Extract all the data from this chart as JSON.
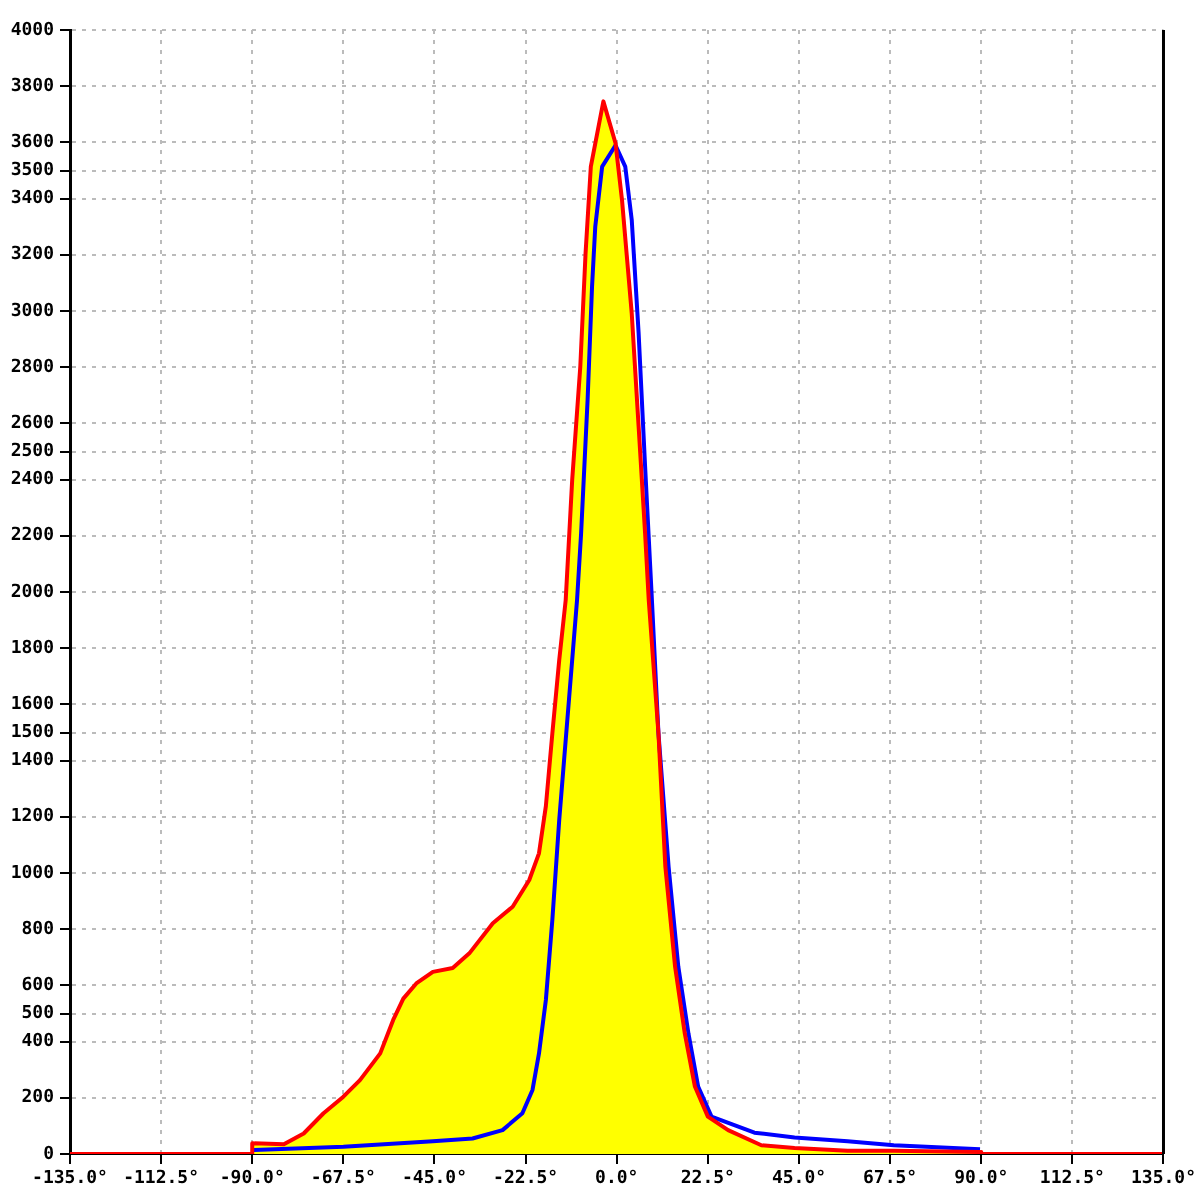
{
  "chart_data": {
    "type": "area",
    "grid": true,
    "marker": "none",
    "legend": false,
    "xlim": [
      -135,
      135
    ],
    "xticks": [
      {
        "value": -135,
        "label": "-135.0°"
      },
      {
        "value": -112.5,
        "label": "-112.5°"
      },
      {
        "value": -90,
        "label": "-90.0°"
      },
      {
        "value": -67.5,
        "label": "-67.5°"
      },
      {
        "value": -45,
        "label": "-45.0°"
      },
      {
        "value": -22.5,
        "label": "-22.5°"
      },
      {
        "value": 0,
        "label": "0.0°"
      },
      {
        "value": 22.5,
        "label": "22.5°"
      },
      {
        "value": 45,
        "label": "45.0°"
      },
      {
        "value": 67.5,
        "label": "67.5°"
      },
      {
        "value": 90,
        "label": "90.0°"
      },
      {
        "value": 112.5,
        "label": "112.5°"
      },
      {
        "value": 135,
        "label": "135.0°"
      }
    ],
    "ylim": [
      0,
      4000
    ],
    "yticks": [
      0,
      200,
      400,
      500,
      600,
      800,
      1000,
      1200,
      1400,
      1500,
      1600,
      1800,
      2000,
      2200,
      2400,
      2500,
      2600,
      2800,
      3000,
      3200,
      3400,
      3500,
      3600,
      3800,
      4000
    ],
    "series": [
      {
        "type": "area",
        "color": "#ffff00",
        "x": [
          -90,
          -90,
          -82.2,
          -77.3,
          -72.4,
          -67.5,
          -63.4,
          -58.4,
          -55.2,
          -52.7,
          -49.5,
          -45.4,
          -40.5,
          -36.4,
          -30.6,
          -25.7,
          -21.6,
          -19.2,
          -17.5,
          -15.9,
          -14.2,
          -12.6,
          -11,
          -9,
          -7.7,
          -6.4,
          -3.3,
          -0.3,
          1.3,
          3.7,
          5.4,
          7,
          7.9,
          10.3,
          12,
          14.4,
          16.8,
          19.3,
          22.5,
          27.5,
          35.7,
          43.9,
          57,
          68.4,
          89.7,
          90
        ],
        "values": [
          0,
          38,
          35,
          73,
          145,
          204,
          263,
          358,
          477,
          553,
          607,
          648,
          662,
          714,
          821,
          880,
          975,
          1070,
          1238,
          1497,
          1758,
          1972,
          2399,
          2802,
          3205,
          3514,
          3746,
          3597,
          3395,
          2992,
          2589,
          2209,
          1972,
          1497,
          1023,
          667,
          429,
          240,
          133,
          85,
          31,
          21,
          12,
          12,
          7,
          0
        ]
      },
      {
        "type": "line",
        "color": "#0000ff",
        "x": [
          -90,
          -67.5,
          -45.4,
          -35.6,
          -28.2,
          -23.3,
          -20.8,
          -19.2,
          -17.5,
          -15.9,
          -14.2,
          -11.8,
          -9.8,
          -8.8,
          -7.2,
          -6.1,
          -5.3,
          -3.6,
          -0.3,
          2.1,
          3.7,
          5.4,
          7,
          8.6,
          10.3,
          12.8,
          15.2,
          17.7,
          20.1,
          23.4,
          34,
          43.9,
          57,
          68.4,
          89.7
        ],
        "values": [
          14,
          26,
          45,
          55,
          85,
          145,
          228,
          358,
          548,
          833,
          1189,
          1616,
          1972,
          2209,
          2683,
          3087,
          3301,
          3514,
          3590,
          3514,
          3325,
          2921,
          2447,
          1995,
          1497,
          1023,
          667,
          429,
          240,
          133,
          76,
          59,
          45,
          31,
          17
        ]
      },
      {
        "type": "line",
        "color": "#ff0000",
        "x": [
          -135,
          -90,
          -90,
          -82.2,
          -77.3,
          -72.4,
          -67.5,
          -63.4,
          -58.4,
          -55.2,
          -52.7,
          -49.5,
          -45.4,
          -40.5,
          -36.4,
          -30.6,
          -25.7,
          -21.6,
          -19.2,
          -17.5,
          -15.9,
          -14.2,
          -12.6,
          -11,
          -9,
          -7.7,
          -6.4,
          -3.3,
          -0.3,
          1.3,
          3.7,
          5.4,
          7,
          7.9,
          10.3,
          12,
          14.4,
          16.8,
          19.3,
          22.5,
          27.5,
          35.7,
          43.9,
          57,
          68.4,
          89.7,
          90,
          135
        ],
        "values": [
          0,
          0,
          38,
          35,
          73,
          145,
          204,
          263,
          358,
          477,
          553,
          607,
          648,
          662,
          714,
          821,
          880,
          975,
          1070,
          1238,
          1497,
          1758,
          1972,
          2399,
          2802,
          3205,
          3514,
          3746,
          3597,
          3395,
          2992,
          2589,
          2209,
          1972,
          1497,
          1023,
          667,
          429,
          240,
          133,
          85,
          31,
          21,
          12,
          12,
          7,
          0,
          0
        ]
      }
    ]
  }
}
